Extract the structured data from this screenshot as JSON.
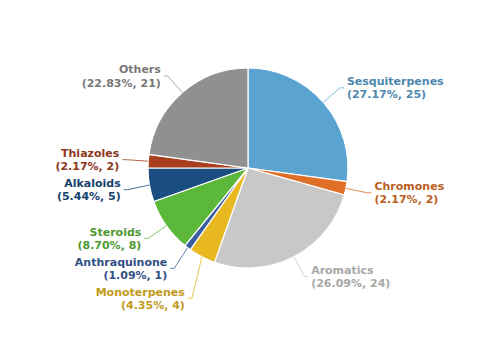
{
  "chart_data": {
    "type": "pie",
    "categories": [
      "Sesquiterpenes",
      "Chromones",
      "Aromatics",
      "Monoterpenes",
      "Anthraquinone",
      "Steroids",
      "Alkaloids",
      "Thiazoles",
      "Others"
    ],
    "values": [
      25,
      2,
      24,
      4,
      1,
      8,
      5,
      2,
      21
    ],
    "percentages": [
      {
        "value": 27.17,
        "label": "27.17%"
      },
      {
        "value": 2.17,
        "label": "2.17%"
      },
      {
        "value": 26.09,
        "label": "26.09%"
      },
      {
        "value": 4.35,
        "label": "4.35%"
      },
      {
        "value": 1.09,
        "label": "1.09%"
      },
      {
        "value": 8.7,
        "label": "8.70%"
      },
      {
        "value": 5.44,
        "label": "5.44%"
      },
      {
        "value": 2.17,
        "label": "2.17%"
      },
      {
        "value": 22.83,
        "label": "22.83%"
      }
    ],
    "colors": [
      "#5BA3D0",
      "#E07028",
      "#C8C8C8",
      "#E8B820",
      "#3A5FA0",
      "#5CB83A",
      "#1A4E80",
      "#A84020",
      "#909090"
    ]
  }
}
